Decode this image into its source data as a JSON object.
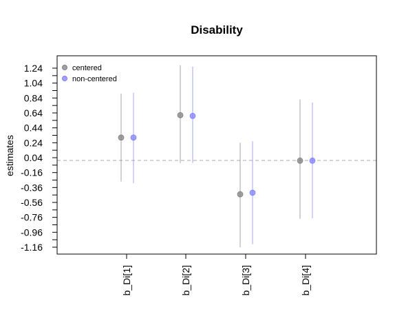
{
  "chart_data": {
    "type": "scatter",
    "title": "Disability",
    "xlabel": "",
    "ylabel": "estimates",
    "categories": [
      "b_Di[1]",
      "b_Di[2]",
      "b_Di[3]",
      "b_Di[4]"
    ],
    "yticks": [
      "1.24",
      "1.04",
      "0.84",
      "0.64",
      "0.44",
      "0.24",
      "0.04",
      "-0.16",
      "-0.36",
      "-0.56",
      "-0.76",
      "-0.96",
      "-1.16"
    ],
    "ylim": [
      -1.2,
      1.3
    ],
    "reference_line": 0,
    "legend_position": "top-left",
    "series": [
      {
        "name": "centered",
        "color": "#808080",
        "estimates": [
          0.31,
          0.61,
          -0.45,
          0.0
        ],
        "lower": [
          -0.28,
          -0.03,
          -1.16,
          -0.78
        ],
        "upper": [
          0.9,
          1.28,
          0.24,
          0.82
        ]
      },
      {
        "name": "non-centered",
        "color": "#8080ff",
        "estimates": [
          0.31,
          0.6,
          -0.43,
          0.0
        ],
        "lower": [
          -0.3,
          -0.03,
          -1.12,
          -0.77
        ],
        "upper": [
          0.91,
          1.26,
          0.26,
          0.78
        ]
      }
    ]
  }
}
